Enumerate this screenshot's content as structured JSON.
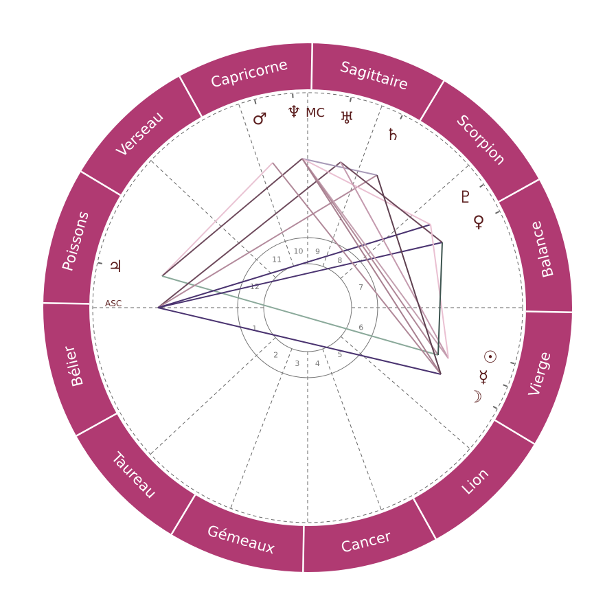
{
  "colors": {
    "ring": "#b03a72",
    "ring_divider": "#ffffff",
    "glyph": "#5a1c1c",
    "cusp_line": "#666666",
    "inner_circle": "#777777"
  },
  "signs": [
    "Bélier",
    "Taureau",
    "Gémeaux",
    "Cancer",
    "Lion",
    "Vierge",
    "Balance",
    "Scorpion",
    "Sagittaire",
    "Capricorne",
    "Verseau",
    "Poissons"
  ],
  "houses": [
    "1",
    "2",
    "3",
    "4",
    "5",
    "6",
    "7",
    "8",
    "9",
    "10",
    "11",
    "12"
  ],
  "axes": {
    "asc": "ASC",
    "mc": "MC"
  },
  "planets": [
    {
      "key": "mars",
      "name": "mars-icon",
      "glyph": "♂"
    },
    {
      "key": "neptune",
      "name": "neptune-icon",
      "glyph": "♆"
    },
    {
      "key": "uranus",
      "name": "uranus-icon",
      "glyph": "♅"
    },
    {
      "key": "saturn",
      "name": "saturn-icon",
      "glyph": "♄"
    },
    {
      "key": "pluto",
      "name": "pluto-icon",
      "glyph": "♇"
    },
    {
      "key": "venus",
      "name": "venus-icon",
      "glyph": "♀"
    },
    {
      "key": "sun",
      "name": "sun-icon",
      "glyph": "☉"
    },
    {
      "key": "mercury",
      "name": "mercury-icon",
      "glyph": "☿"
    },
    {
      "key": "moon",
      "name": "moon-icon",
      "glyph": "☽"
    },
    {
      "key": "jupiter",
      "name": "jupiter-icon",
      "glyph": "♃"
    }
  ],
  "aspects": [
    {
      "from": "jupiter",
      "to": "mars",
      "color": "#e9c3d3"
    },
    {
      "from": "jupiter",
      "to": "neptune",
      "color": "#6e4a5c"
    },
    {
      "from": "jupiter",
      "to": "mercury",
      "color": "#8aa99a"
    },
    {
      "from": "asc",
      "to": "uranus",
      "color": "#6e4a5c"
    },
    {
      "from": "asc",
      "to": "saturn",
      "color": "#b38a9c"
    },
    {
      "from": "asc",
      "to": "pluto",
      "color": "#4a3370"
    },
    {
      "from": "asc",
      "to": "venus",
      "color": "#4a3370"
    },
    {
      "from": "asc",
      "to": "moon",
      "color": "#4a3370"
    },
    {
      "from": "mars",
      "to": "moon",
      "color": "#b08898"
    },
    {
      "from": "neptune",
      "to": "saturn",
      "color": "#a89ab8"
    },
    {
      "from": "neptune",
      "to": "pluto",
      "color": "#eac0d2"
    },
    {
      "from": "neptune",
      "to": "sun",
      "color": "#c4a0b0"
    },
    {
      "from": "neptune",
      "to": "mercury",
      "color": "#b08898"
    },
    {
      "from": "neptune",
      "to": "moon",
      "color": "#a88090"
    },
    {
      "from": "uranus",
      "to": "venus",
      "color": "#6e4a5c"
    },
    {
      "from": "uranus",
      "to": "sun",
      "color": "#c49aae"
    },
    {
      "from": "saturn",
      "to": "moon",
      "color": "#5e4050"
    },
    {
      "from": "pluto",
      "to": "sun",
      "color": "#eac0d2"
    },
    {
      "from": "venus",
      "to": "mercury",
      "color": "#3e5550"
    }
  ]
}
